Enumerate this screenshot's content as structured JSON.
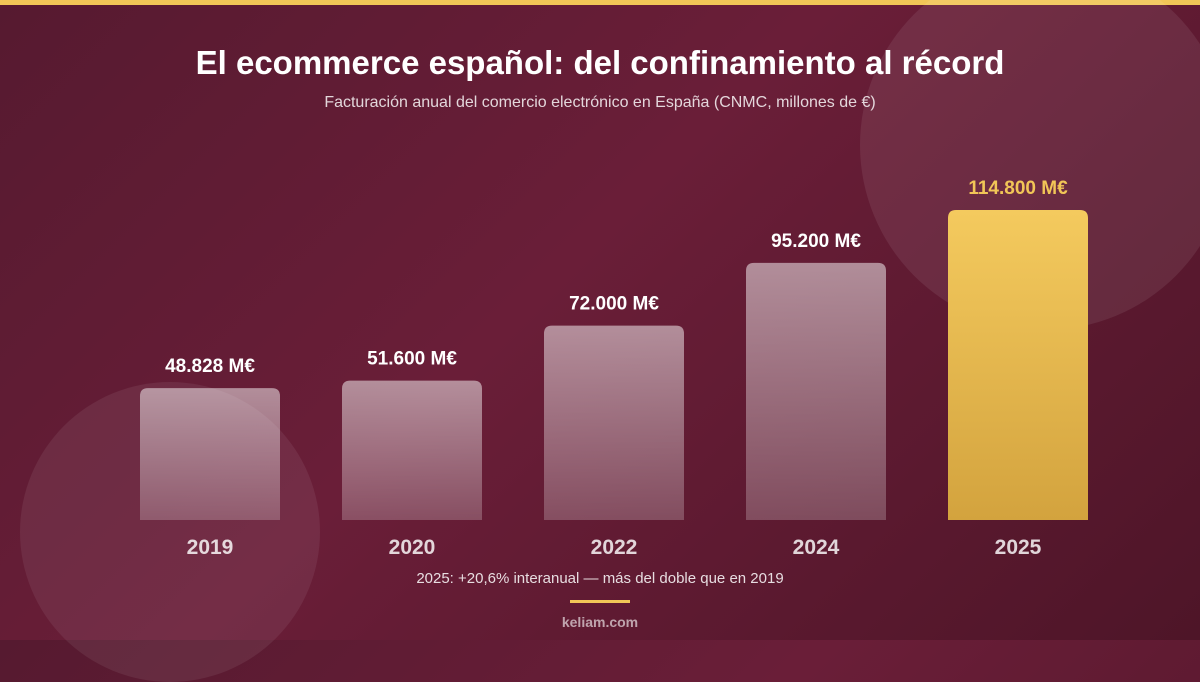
{
  "header": {
    "title": "El ecommerce español: del confinamiento al récord",
    "subtitle": "Facturación anual del comercio electrónico en España (CNMC, millones de €)"
  },
  "chart_data": {
    "type": "bar",
    "categories": [
      "2019",
      "2020",
      "2022",
      "2024",
      "2025"
    ],
    "values": [
      48828,
      51600,
      72000,
      95200,
      114800
    ],
    "value_labels": [
      "48.828 M€",
      "51.600 M€",
      "72.000 M€",
      "95.200 M€",
      "114.800 M€"
    ],
    "highlight_index": 4,
    "ylim": [
      0,
      114800
    ],
    "grid": false
  },
  "colors": {
    "background": "#5e1a33",
    "accent": "#f1c657",
    "bar": "#a8808e",
    "highlight_bar": "#f1c657"
  },
  "note": "2025: +20,6% interanual — más del doble que en 2019",
  "footer": "keliam.com"
}
